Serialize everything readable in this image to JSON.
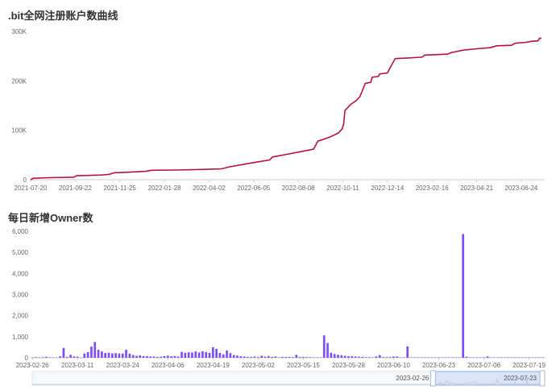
{
  "chart_data": [
    {
      "type": "line",
      "title": ".bit全网注册账户数曲线",
      "color": "#b5133c",
      "ylim": [
        0,
        300000
      ],
      "y_ticks": [
        "0",
        "100K",
        "200K",
        "300K"
      ],
      "y_tick_values": [
        0,
        100000,
        200000,
        300000
      ],
      "x_labels": [
        "2021-07-20",
        "2021-09-22",
        "2021-11-25",
        "2022-01-28",
        "2022-04-02",
        "2022-06-05",
        "2022-08-08",
        "2022-10-11",
        "2022-12-14",
        "2023-02-16",
        "2023-04-21",
        "2023-06-24"
      ],
      "x_range": [
        "2021-07-20",
        "2023-07-23"
      ],
      "grid": false,
      "points": [
        [
          "2021-07-20",
          0
        ],
        [
          "2021-07-24",
          3000
        ],
        [
          "2021-08-15",
          4000
        ],
        [
          "2021-09-20",
          5000
        ],
        [
          "2021-09-24",
          8000
        ],
        [
          "2021-10-30",
          9500
        ],
        [
          "2021-11-10",
          11000
        ],
        [
          "2021-11-17",
          14000
        ],
        [
          "2021-12-20",
          16000
        ],
        [
          "2022-01-01",
          17000
        ],
        [
          "2022-01-10",
          19000
        ],
        [
          "2022-02-15",
          19500
        ],
        [
          "2022-03-31",
          21000
        ],
        [
          "2022-04-20",
          22000
        ],
        [
          "2022-05-01",
          26000
        ],
        [
          "2022-05-25",
          32000
        ],
        [
          "2022-06-15",
          37000
        ],
        [
          "2022-06-28",
          40000
        ],
        [
          "2022-07-02",
          46000
        ],
        [
          "2022-07-25",
          52000
        ],
        [
          "2022-08-20",
          59000
        ],
        [
          "2022-08-30",
          62000
        ],
        [
          "2022-09-02",
          70000
        ],
        [
          "2022-09-05",
          78000
        ],
        [
          "2022-09-20",
          85000
        ],
        [
          "2022-09-25",
          88000
        ],
        [
          "2022-10-01",
          92000
        ],
        [
          "2022-10-05",
          95000
        ],
        [
          "2022-10-10",
          103000
        ],
        [
          "2022-10-12",
          112000
        ],
        [
          "2022-10-14",
          140000
        ],
        [
          "2022-10-22",
          152000
        ],
        [
          "2022-10-30",
          160000
        ],
        [
          "2022-11-04",
          167000
        ],
        [
          "2022-11-08",
          180000
        ],
        [
          "2022-11-12",
          195000
        ],
        [
          "2022-11-20",
          197000
        ],
        [
          "2022-11-22",
          207000
        ],
        [
          "2022-12-01",
          209000
        ],
        [
          "2022-12-03",
          214000
        ],
        [
          "2022-12-14",
          216000
        ],
        [
          "2022-12-20",
          232000
        ],
        [
          "2022-12-25",
          245000
        ],
        [
          "2023-01-10",
          246000
        ],
        [
          "2023-02-02",
          248000
        ],
        [
          "2023-02-05",
          252000
        ],
        [
          "2023-03-10",
          254000
        ],
        [
          "2023-03-15",
          257000
        ],
        [
          "2023-04-01",
          262000
        ],
        [
          "2023-04-21",
          265000
        ],
        [
          "2023-05-10",
          267000
        ],
        [
          "2023-05-20",
          271000
        ],
        [
          "2023-06-10",
          272000
        ],
        [
          "2023-06-15",
          276000
        ],
        [
          "2023-07-01",
          278000
        ],
        [
          "2023-07-08",
          280000
        ],
        [
          "2023-07-18",
          281000
        ],
        [
          "2023-07-20",
          286000
        ],
        [
          "2023-07-23",
          286000
        ]
      ]
    },
    {
      "type": "bar",
      "title": "每日新增Owner数",
      "color": "#7c4dff",
      "ylim": [
        0,
        6000
      ],
      "y_ticks": [
        "0",
        "1,000",
        "2,000",
        "3,000",
        "4,000",
        "5,000",
        "6,000"
      ],
      "y_tick_values": [
        0,
        1000,
        2000,
        3000,
        4000,
        5000,
        6000
      ],
      "x_labels": [
        "2023-02-26",
        "2023-03-11",
        "2023-03-24",
        "2023-04-06",
        "2023-04-19",
        "2023-05-02",
        "2023-05-15",
        "2023-05-28",
        "2023-06-10",
        "2023-06-23",
        "2023-07-06",
        "2023-07-19"
      ],
      "start_date": "2023-02-26",
      "grid": false,
      "values": [
        10,
        30,
        20,
        30,
        50,
        20,
        10,
        15,
        70,
        470,
        40,
        140,
        60,
        50,
        10,
        200,
        270,
        530,
        750,
        380,
        300,
        230,
        240,
        210,
        220,
        200,
        200,
        380,
        190,
        130,
        90,
        110,
        80,
        80,
        60,
        60,
        40,
        50,
        80,
        100,
        70,
        80,
        60,
        280,
        230,
        260,
        250,
        300,
        250,
        310,
        270,
        230,
        500,
        420,
        230,
        160,
        350,
        220,
        130,
        100,
        70,
        60,
        40,
        40,
        60,
        30,
        90,
        50,
        80,
        40,
        60,
        20,
        40,
        40,
        40,
        30,
        140,
        40,
        40,
        30,
        30,
        20,
        20,
        20,
        1060,
        700,
        240,
        180,
        140,
        120,
        90,
        70,
        70,
        60,
        50,
        40,
        30,
        30,
        20,
        60,
        130,
        30,
        30,
        30,
        60,
        60,
        20,
        20,
        540,
        20,
        20,
        20,
        20,
        20,
        20,
        20,
        20,
        20,
        20,
        20,
        20,
        20,
        20,
        20,
        5870,
        50,
        20,
        20,
        20,
        20,
        20,
        60,
        20,
        20,
        20,
        20,
        20,
        20,
        20,
        20,
        20,
        20,
        20,
        20,
        20,
        20,
        20,
        20
      ]
    }
  ],
  "zoom": {
    "start_label": "2023-02-26",
    "end_label": "2023-07-23",
    "start_fraction": 0.782,
    "end_fraction": 1.0
  }
}
